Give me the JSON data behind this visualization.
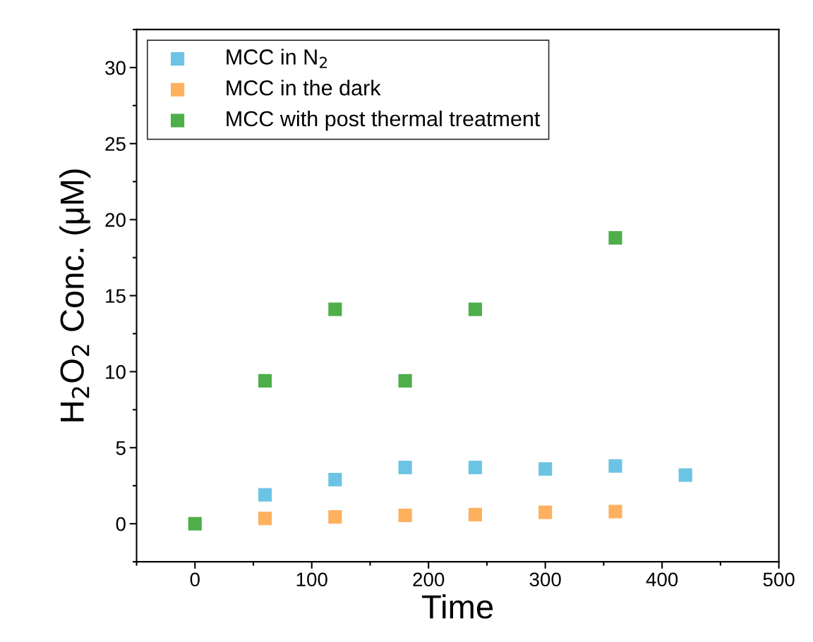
{
  "chart_data": {
    "type": "scatter",
    "xlabel": "Time",
    "ylabel": "H$_{2}$O$_{2}$ Conc. (μM)",
    "xlim": [
      -50,
      500
    ],
    "xticks": [
      0,
      100,
      200,
      300,
      400,
      500
    ],
    "ylim": [
      -2.5,
      32.5
    ],
    "yticks": [
      0,
      5,
      10,
      15,
      20,
      25,
      30
    ],
    "marker": "square",
    "legend": "top left",
    "grid": false,
    "series": [
      {
        "name": "MCC in N$_{2}$",
        "color": "#6cc4e4",
        "x": [
          60,
          120,
          180,
          240,
          300,
          360,
          420
        ],
        "values": [
          1.9,
          2.9,
          3.7,
          3.7,
          3.6,
          3.8,
          3.2
        ]
      },
      {
        "name": "MCC in the dark",
        "color": "#fdb05e",
        "x": [
          60,
          120,
          180,
          240,
          300,
          360
        ],
        "values": [
          0.35,
          0.45,
          0.55,
          0.6,
          0.75,
          0.8
        ]
      },
      {
        "name": "MCC with post thermal treatment",
        "color": "#4dae4a",
        "x": [
          0,
          60,
          120,
          180,
          240,
          360
        ],
        "values": [
          0,
          9.4,
          14.1,
          9.4,
          14.1,
          18.8
        ]
      }
    ]
  }
}
